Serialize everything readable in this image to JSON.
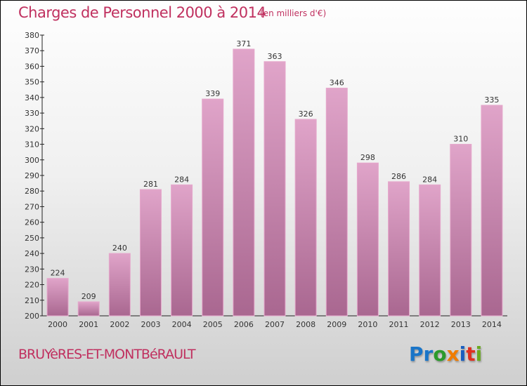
{
  "chart_data": {
    "type": "bar",
    "title": "Charges de Personnel 2000 à 2014",
    "subtitle": "(en milliers d'€)",
    "categories": [
      "2000",
      "2001",
      "2002",
      "2003",
      "2004",
      "2005",
      "2006",
      "2007",
      "2008",
      "2009",
      "2010",
      "2011",
      "2012",
      "2013",
      "2014"
    ],
    "values": [
      224,
      209,
      240,
      281,
      284,
      339,
      371,
      363,
      326,
      346,
      298,
      286,
      284,
      310,
      335
    ],
    "ylim": [
      200,
      380
    ],
    "ytick_step": 10,
    "xlabel": "",
    "ylabel": "",
    "bar_color": "#c97aa6"
  },
  "commune": "BRUYèRES-ET-MONTBéRAULT",
  "logo": {
    "letters": [
      "P",
      "r",
      "o",
      "x",
      "i",
      "t",
      "i"
    ],
    "colors": [
      "#1a75c8",
      "#1a75c8",
      "#2b9a2b",
      "#f07c00",
      "#1a5fc0",
      "#e03020",
      "#6aaa20"
    ]
  }
}
